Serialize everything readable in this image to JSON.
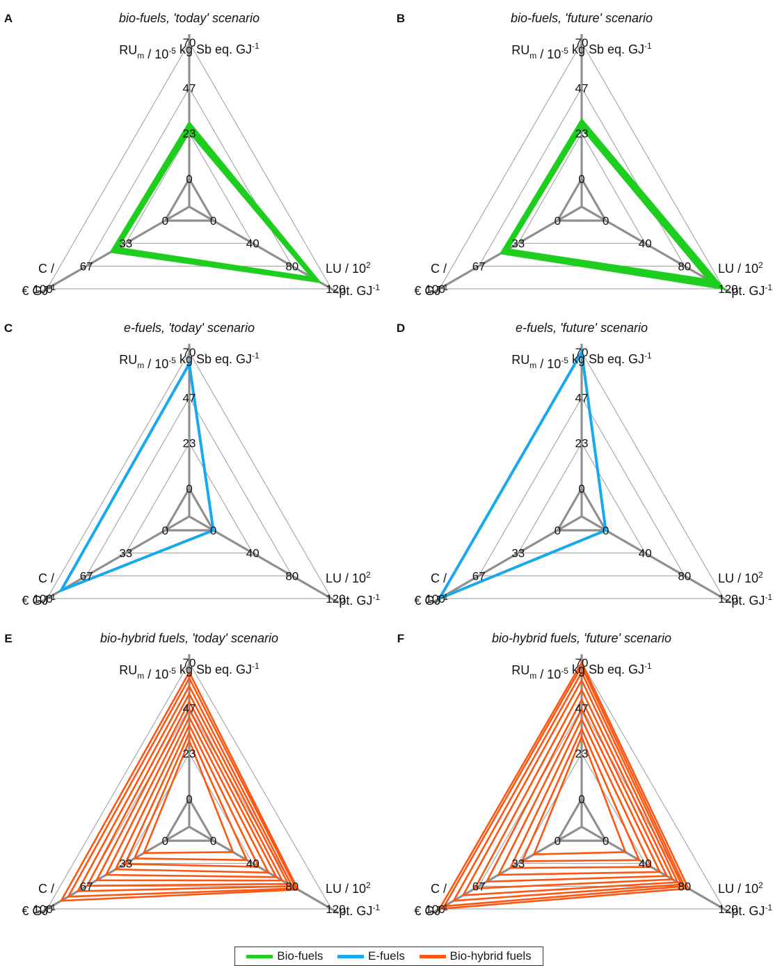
{
  "colors": {
    "bio": "#1fce1f",
    "efuel": "#18a8ee",
    "hybrid": "#fb5713"
  },
  "legend": [
    {
      "label": "Bio-fuels",
      "color": "#1fce1f"
    },
    {
      "label": "E-fuels",
      "color": "#18a8ee"
    },
    {
      "label": "Bio-hybrid fuels",
      "color": "#fb5713"
    }
  ],
  "chart_data": [
    {
      "type": "radar",
      "letter": "A",
      "title": "bio-fuels, 'today' scenario",
      "color": "#1fce1f",
      "axes": [
        {
          "label": "RUm / 10-5 kg Sb eq. GJ-1",
          "ticks": [
            "0",
            "23",
            "47",
            "70"
          ],
          "range": [
            0,
            70
          ]
        },
        {
          "label": "LU / 102 pt. GJ-1",
          "ticks": [
            "0",
            "40",
            "80",
            "120"
          ],
          "range": [
            0,
            120
          ]
        },
        {
          "label": "C / € GJ-1",
          "ticks": [
            "0",
            "33",
            "67",
            "100"
          ],
          "range": [
            0,
            100
          ]
        }
      ],
      "series": [
        {
          "values": [
            24,
            100,
            40
          ]
        },
        {
          "values": [
            25,
            101,
            41
          ]
        },
        {
          "values": [
            25.5,
            102,
            42
          ]
        },
        {
          "values": [
            26,
            103,
            42.5
          ]
        },
        {
          "values": [
            26.5,
            104,
            43
          ]
        },
        {
          "values": [
            27,
            104.5,
            43.5
          ]
        },
        {
          "values": [
            27.5,
            105,
            44
          ]
        },
        {
          "values": [
            28,
            106,
            45
          ]
        },
        {
          "values": [
            28.5,
            107,
            45.5
          ]
        },
        {
          "values": [
            29,
            108,
            46
          ]
        }
      ]
    },
    {
      "type": "radar",
      "letter": "B",
      "title": "bio-fuels, 'future' scenario",
      "color": "#1fce1f",
      "axes": [
        {
          "label": "RUm / 10-5 kg Sb eq. GJ-1",
          "ticks": [
            "0",
            "23",
            "47",
            "70"
          ],
          "range": [
            0,
            70
          ]
        },
        {
          "label": "LU / 102 pt. GJ-1",
          "ticks": [
            "0",
            "40",
            "80",
            "120"
          ],
          "range": [
            0,
            120
          ]
        },
        {
          "label": "C / € GJ-1",
          "ticks": [
            "0",
            "33",
            "67",
            "100"
          ],
          "range": [
            0,
            100
          ]
        }
      ],
      "series": [
        {
          "values": [
            26,
            104,
            42
          ]
        },
        {
          "values": [
            26.5,
            106,
            43
          ]
        },
        {
          "values": [
            27,
            107.5,
            43.5
          ]
        },
        {
          "values": [
            27.5,
            109,
            44
          ]
        },
        {
          "values": [
            28,
            110.5,
            44.5
          ]
        },
        {
          "values": [
            28.5,
            112,
            45
          ]
        },
        {
          "values": [
            29,
            114,
            45.5
          ]
        },
        {
          "values": [
            29.5,
            116,
            46
          ]
        },
        {
          "values": [
            30,
            118,
            47
          ]
        },
        {
          "values": [
            30.5,
            120,
            48
          ]
        }
      ]
    },
    {
      "type": "radar",
      "letter": "C",
      "title": "e-fuels, 'today' scenario",
      "color": "#18a8ee",
      "axes": [
        {
          "label": "RUm / 10-5 kg Sb eq. GJ-1",
          "ticks": [
            "0",
            "23",
            "47",
            "70"
          ],
          "range": [
            0,
            70
          ]
        },
        {
          "label": "LU / 102 pt. GJ-1",
          "ticks": [
            "0",
            "40",
            "80",
            "120"
          ],
          "range": [
            0,
            120
          ]
        },
        {
          "label": "C / € GJ-1",
          "ticks": [
            "0",
            "33",
            "67",
            "100"
          ],
          "range": [
            0,
            100
          ]
        }
      ],
      "series": [
        {
          "values": [
            64,
            0,
            88
          ]
        }
      ]
    },
    {
      "type": "radar",
      "letter": "D",
      "title": "e-fuels, 'future' scenario",
      "color": "#18a8ee",
      "axes": [
        {
          "label": "RUm / 10-5 kg Sb eq. GJ-1",
          "ticks": [
            "0",
            "23",
            "47",
            "70"
          ],
          "range": [
            0,
            70
          ]
        },
        {
          "label": "LU / 102 pt. GJ-1",
          "ticks": [
            "0",
            "40",
            "80",
            "120"
          ],
          "range": [
            0,
            120
          ]
        },
        {
          "label": "C / € GJ-1",
          "ticks": [
            "0",
            "33",
            "67",
            "100"
          ],
          "range": [
            0,
            100
          ]
        }
      ],
      "series": [
        {
          "values": [
            70,
            0,
            100
          ]
        }
      ]
    },
    {
      "type": "radar",
      "letter": "E",
      "title": "bio-hybrid fuels, 'today' scenario",
      "color": "#fb5713",
      "axes": [
        {
          "label": "RUm / 10-5 kg Sb eq. GJ-1",
          "ticks": [
            "0",
            "23",
            "47",
            "70"
          ],
          "range": [
            0,
            70
          ]
        },
        {
          "label": "LU / 102 pt. GJ-1",
          "ticks": [
            "0",
            "40",
            "80",
            "120"
          ],
          "range": [
            0,
            120
          ]
        },
        {
          "label": "C / € GJ-1",
          "ticks": [
            "0",
            "33",
            "67",
            "100"
          ],
          "range": [
            0,
            100
          ]
        }
      ],
      "series": [
        {
          "values": [
            30,
            20,
            18
          ]
        },
        {
          "values": [
            34,
            34,
            26
          ]
        },
        {
          "values": [
            38,
            46,
            34
          ]
        },
        {
          "values": [
            42,
            56,
            42
          ]
        },
        {
          "values": [
            46,
            64,
            50
          ]
        },
        {
          "values": [
            50,
            70,
            58
          ]
        },
        {
          "values": [
            54,
            76,
            66
          ]
        },
        {
          "values": [
            58,
            80,
            74
          ]
        },
        {
          "values": [
            62,
            84,
            82
          ]
        },
        {
          "values": [
            65,
            86,
            88
          ]
        }
      ]
    },
    {
      "type": "radar",
      "letter": "F",
      "title": "bio-hybrid fuels, 'future' scenario",
      "color": "#fb5713",
      "axes": [
        {
          "label": "RUm / 10-5 kg Sb eq. GJ-1",
          "ticks": [
            "0",
            "23",
            "47",
            "70"
          ],
          "range": [
            0,
            70
          ]
        },
        {
          "label": "LU / 102 pt. GJ-1",
          "ticks": [
            "0",
            "40",
            "80",
            "120"
          ],
          "range": [
            0,
            120
          ]
        },
        {
          "label": "C / € GJ-1",
          "ticks": [
            "0",
            "33",
            "67",
            "100"
          ],
          "range": [
            0,
            100
          ]
        }
      ],
      "series": [
        {
          "values": [
            32,
            20,
            20
          ]
        },
        {
          "values": [
            36,
            34,
            30
          ]
        },
        {
          "values": [
            41,
            46,
            40
          ]
        },
        {
          "values": [
            46,
            55,
            50
          ]
        },
        {
          "values": [
            51,
            62,
            60
          ]
        },
        {
          "values": [
            56,
            68,
            70
          ]
        },
        {
          "values": [
            61,
            73,
            80
          ]
        },
        {
          "values": [
            65,
            77,
            88
          ]
        },
        {
          "values": [
            68,
            80,
            96
          ]
        },
        {
          "values": [
            70,
            84,
            100
          ]
        }
      ]
    }
  ]
}
